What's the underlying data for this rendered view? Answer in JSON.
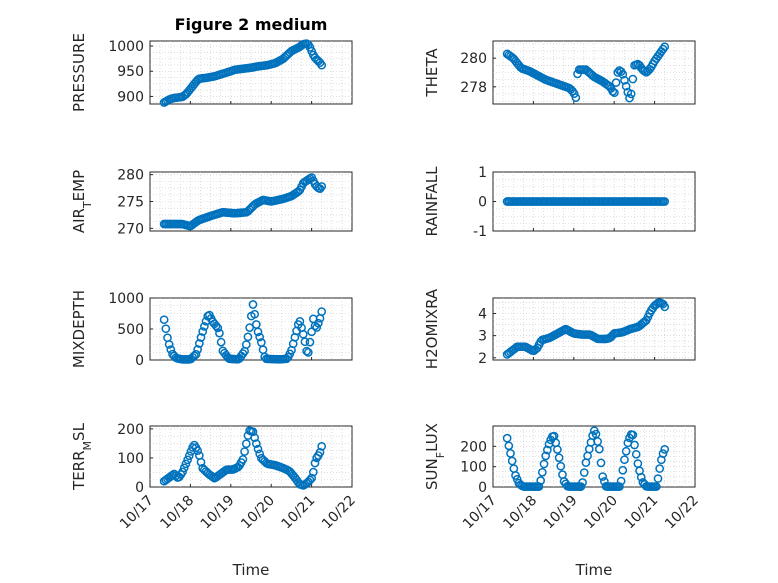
{
  "figure": {
    "title": "Figure 2 medium",
    "marker_color": "#0072BD",
    "xlabel": "Time",
    "x_ticks": [
      "10/17",
      "10/18",
      "10/19",
      "10/20",
      "10/21",
      "10/22"
    ],
    "x_range": [
      0,
      5
    ],
    "data_start": 0.35,
    "data_end": 4.25
  },
  "chart_data": [
    {
      "type": "scatter",
      "col": 0,
      "row": 0,
      "ylabel": "PRESSURE",
      "ylabel_sub": "",
      "ylabel_rest": "",
      "ylim": [
        885,
        1010
      ],
      "yticks": [
        900,
        950,
        1000
      ],
      "anchors": [
        [
          0.35,
          888
        ],
        [
          0.5,
          895
        ],
        [
          0.6,
          897
        ],
        [
          0.8,
          899
        ],
        [
          0.9,
          905
        ],
        [
          1.05,
          920
        ],
        [
          1.2,
          935
        ],
        [
          1.4,
          937
        ],
        [
          1.6,
          940
        ],
        [
          1.8,
          945
        ],
        [
          2.0,
          950
        ],
        [
          2.1,
          953
        ],
        [
          2.3,
          955
        ],
        [
          2.5,
          957
        ],
        [
          2.7,
          960
        ],
        [
          2.9,
          962
        ],
        [
          3.1,
          966
        ],
        [
          3.3,
          975
        ],
        [
          3.5,
          990
        ],
        [
          3.7,
          998
        ],
        [
          3.8,
          1004
        ],
        [
          3.9,
          1005
        ],
        [
          3.95,
          999
        ],
        [
          4.0,
          990
        ],
        [
          4.05,
          981
        ],
        [
          4.1,
          975
        ],
        [
          4.2,
          968
        ],
        [
          4.25,
          962
        ]
      ]
    },
    {
      "type": "scatter",
      "col": 1,
      "row": 0,
      "ylabel": "THETA",
      "ylabel_sub": "",
      "ylabel_rest": "",
      "ylim": [
        276.8,
        281.2
      ],
      "yticks": [
        278,
        280
      ],
      "anchors": [
        [
          0.35,
          280.3
        ],
        [
          0.5,
          280.0
        ],
        [
          0.7,
          279.3
        ],
        [
          0.9,
          279.1
        ],
        [
          1.1,
          278.8
        ],
        [
          1.3,
          278.5
        ],
        [
          1.5,
          278.3
        ],
        [
          1.7,
          278.1
        ],
        [
          1.9,
          277.9
        ],
        [
          2.0,
          277.6
        ],
        [
          2.05,
          277.2
        ],
        [
          2.1,
          279.2
        ],
        [
          2.3,
          279.2
        ],
        [
          2.5,
          278.7
        ],
        [
          2.7,
          278.4
        ],
        [
          2.9,
          278.0
        ],
        [
          3.0,
          277.5
        ],
        [
          3.1,
          279.2
        ],
        [
          3.2,
          279.0
        ],
        [
          3.3,
          278.0
        ],
        [
          3.4,
          277.0
        ],
        [
          3.5,
          279.5
        ],
        [
          3.6,
          279.6
        ],
        [
          3.7,
          279.2
        ],
        [
          3.8,
          279.0
        ],
        [
          3.9,
          279.3
        ],
        [
          4.0,
          279.8
        ],
        [
          4.1,
          280.2
        ],
        [
          4.2,
          280.6
        ],
        [
          4.25,
          280.8
        ]
      ]
    },
    {
      "type": "scatter",
      "col": 0,
      "row": 1,
      "ylabel": "AIR",
      "ylabel_sub": "T",
      "ylabel_rest": "EMP",
      "ylim": [
        269.5,
        280.5
      ],
      "yticks": [
        270,
        275,
        280
      ],
      "anchors": [
        [
          0.35,
          270.8
        ],
        [
          0.8,
          270.8
        ],
        [
          1.0,
          270.4
        ],
        [
          1.2,
          271.5
        ],
        [
          1.5,
          272.3
        ],
        [
          1.8,
          273.0
        ],
        [
          2.1,
          272.8
        ],
        [
          2.4,
          273.0
        ],
        [
          2.6,
          274.5
        ],
        [
          2.8,
          275.3
        ],
        [
          3.0,
          275.0
        ],
        [
          3.3,
          275.5
        ],
        [
          3.5,
          276.0
        ],
        [
          3.7,
          277.0
        ],
        [
          3.8,
          278.5
        ],
        [
          3.9,
          279.0
        ],
        [
          4.0,
          279.5
        ],
        [
          4.1,
          278.0
        ],
        [
          4.2,
          277.3
        ],
        [
          4.25,
          277.8
        ]
      ]
    },
    {
      "type": "scatter",
      "col": 1,
      "row": 1,
      "ylabel": "RAINFALL",
      "ylabel_sub": "",
      "ylabel_rest": "",
      "ylim": [
        -1,
        1
      ],
      "yticks": [
        -1,
        0,
        1
      ],
      "anchors": [
        [
          0.35,
          0
        ],
        [
          4.25,
          0
        ]
      ]
    },
    {
      "type": "scatter",
      "col": 0,
      "row": 2,
      "ylabel": "MIXDEPTH",
      "ylabel_sub": "",
      "ylabel_rest": "",
      "ylim": [
        0,
        1000
      ],
      "yticks": [
        0,
        500,
        1000
      ],
      "anchors": [
        [
          0.35,
          650
        ],
        [
          0.45,
          300
        ],
        [
          0.55,
          100
        ],
        [
          0.65,
          30
        ],
        [
          0.8,
          10
        ],
        [
          1.0,
          10
        ],
        [
          1.15,
          100
        ],
        [
          1.3,
          450
        ],
        [
          1.45,
          750
        ],
        [
          1.55,
          620
        ],
        [
          1.7,
          500
        ],
        [
          1.8,
          150
        ],
        [
          1.95,
          20
        ],
        [
          2.2,
          10
        ],
        [
          2.35,
          150
        ],
        [
          2.45,
          450
        ],
        [
          2.55,
          900
        ],
        [
          2.65,
          500
        ],
        [
          2.75,
          300
        ],
        [
          2.85,
          20
        ],
        [
          3.2,
          10
        ],
        [
          3.4,
          20
        ],
        [
          3.5,
          150
        ],
        [
          3.6,
          400
        ],
        [
          3.7,
          650
        ],
        [
          3.8,
          400
        ],
        [
          3.85,
          250
        ],
        [
          3.9,
          50
        ],
        [
          4.0,
          450
        ],
        [
          4.05,
          700
        ],
        [
          4.1,
          480
        ],
        [
          4.2,
          650
        ],
        [
          4.25,
          780
        ]
      ]
    },
    {
      "type": "scatter",
      "col": 1,
      "row": 2,
      "ylabel": "H2OMIXRA",
      "ylabel_sub": "",
      "ylabel_rest": "",
      "ylim": [
        1.9,
        4.7
      ],
      "yticks": [
        2,
        3,
        4
      ],
      "anchors": [
        [
          0.35,
          2.15
        ],
        [
          0.6,
          2.5
        ],
        [
          0.8,
          2.5
        ],
        [
          1.0,
          2.3
        ],
        [
          1.1,
          2.45
        ],
        [
          1.2,
          2.8
        ],
        [
          1.4,
          2.9
        ],
        [
          1.6,
          3.1
        ],
        [
          1.8,
          3.3
        ],
        [
          2.0,
          3.1
        ],
        [
          2.2,
          3.05
        ],
        [
          2.4,
          3.05
        ],
        [
          2.6,
          2.85
        ],
        [
          2.8,
          2.85
        ],
        [
          2.9,
          2.9
        ],
        [
          3.0,
          3.1
        ],
        [
          3.2,
          3.15
        ],
        [
          3.4,
          3.3
        ],
        [
          3.6,
          3.4
        ],
        [
          3.8,
          3.7
        ],
        [
          3.9,
          4.1
        ],
        [
          4.0,
          4.35
        ],
        [
          4.1,
          4.5
        ],
        [
          4.2,
          4.45
        ],
        [
          4.25,
          4.3
        ]
      ]
    },
    {
      "type": "scatter",
      "col": 0,
      "row": 3,
      "ylabel": "TERR",
      "ylabel_sub": "M",
      "ylabel_rest": "SL",
      "ylim": [
        0,
        210
      ],
      "yticks": [
        0,
        100,
        200
      ],
      "anchors": [
        [
          0.35,
          20
        ],
        [
          0.5,
          35
        ],
        [
          0.6,
          45
        ],
        [
          0.7,
          30
        ],
        [
          0.8,
          50
        ],
        [
          0.95,
          100
        ],
        [
          1.05,
          135
        ],
        [
          1.1,
          145
        ],
        [
          1.2,
          120
        ],
        [
          1.3,
          65
        ],
        [
          1.45,
          45
        ],
        [
          1.6,
          30
        ],
        [
          1.75,
          45
        ],
        [
          1.9,
          60
        ],
        [
          2.05,
          60
        ],
        [
          2.2,
          70
        ],
        [
          2.3,
          95
        ],
        [
          2.4,
          160
        ],
        [
          2.45,
          195
        ],
        [
          2.55,
          190
        ],
        [
          2.65,
          140
        ],
        [
          2.75,
          100
        ],
        [
          2.9,
          80
        ],
        [
          3.1,
          75
        ],
        [
          3.3,
          65
        ],
        [
          3.45,
          55
        ],
        [
          3.6,
          30
        ],
        [
          3.7,
          10
        ],
        [
          3.8,
          5
        ],
        [
          3.9,
          15
        ],
        [
          4.0,
          30
        ],
        [
          4.05,
          55
        ],
        [
          4.1,
          95
        ],
        [
          4.2,
          115
        ],
        [
          4.25,
          140
        ]
      ]
    },
    {
      "type": "scatter",
      "col": 1,
      "row": 3,
      "ylabel": "SUN",
      "ylabel_sub": "F",
      "ylabel_rest": "LUX",
      "ylim": [
        0,
        300
      ],
      "yticks": [
        0,
        100,
        200
      ],
      "anchors": [
        [
          0.35,
          240
        ],
        [
          0.45,
          150
        ],
        [
          0.55,
          60
        ],
        [
          0.65,
          15
        ],
        [
          0.75,
          2
        ],
        [
          1.15,
          2
        ],
        [
          1.3,
          150
        ],
        [
          1.4,
          220
        ],
        [
          1.5,
          260
        ],
        [
          1.6,
          180
        ],
        [
          1.7,
          80
        ],
        [
          1.75,
          30
        ],
        [
          1.85,
          2
        ],
        [
          2.2,
          2
        ],
        [
          2.3,
          120
        ],
        [
          2.4,
          200
        ],
        [
          2.5,
          280
        ],
        [
          2.55,
          260
        ],
        [
          2.65,
          170
        ],
        [
          2.7,
          60
        ],
        [
          2.8,
          2
        ],
        [
          3.15,
          2
        ],
        [
          3.25,
          130
        ],
        [
          3.35,
          230
        ],
        [
          3.45,
          270
        ],
        [
          3.5,
          210
        ],
        [
          3.6,
          100
        ],
        [
          3.7,
          25
        ],
        [
          3.8,
          2
        ],
        [
          4.05,
          2
        ],
        [
          4.1,
          60
        ],
        [
          4.15,
          120
        ],
        [
          4.2,
          160
        ],
        [
          4.25,
          185
        ]
      ]
    }
  ]
}
